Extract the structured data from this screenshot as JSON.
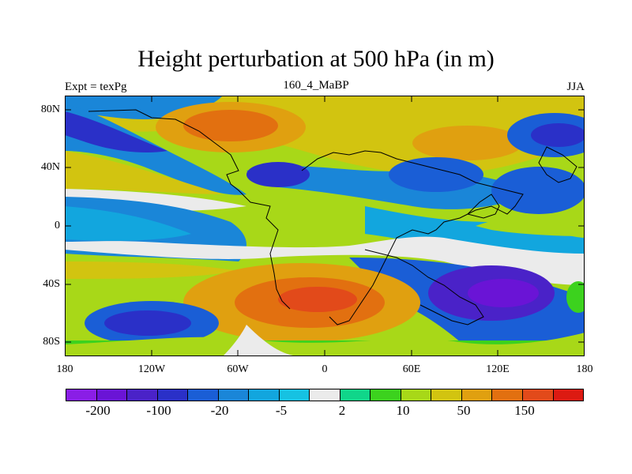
{
  "title": "Height perturbation at 500 hPa (in m)",
  "left_label": "Expt = texPg",
  "center_label": "160_4_MaBP",
  "right_label": "JJA",
  "axes": {
    "y_ticks": [
      "80N",
      "40N",
      "0",
      "40S",
      "80S"
    ],
    "x_ticks": [
      "180",
      "120W",
      "60W",
      "0",
      "60E",
      "120E",
      "180"
    ]
  },
  "colorbar": {
    "colors": [
      "#8a1ee6",
      "#6a14d6",
      "#4a22c8",
      "#2a30c8",
      "#1a5ed6",
      "#1a86d8",
      "#12a6de",
      "#16c2e2",
      "#ebebeb",
      "#10d68a",
      "#3cd21e",
      "#a8d818",
      "#d2c410",
      "#e0a010",
      "#e27010",
      "#e24a1a",
      "#dc1a12"
    ],
    "labels": [
      "-200",
      "-100",
      "-20",
      "-5",
      "2",
      "10",
      "50",
      "150"
    ]
  }
}
